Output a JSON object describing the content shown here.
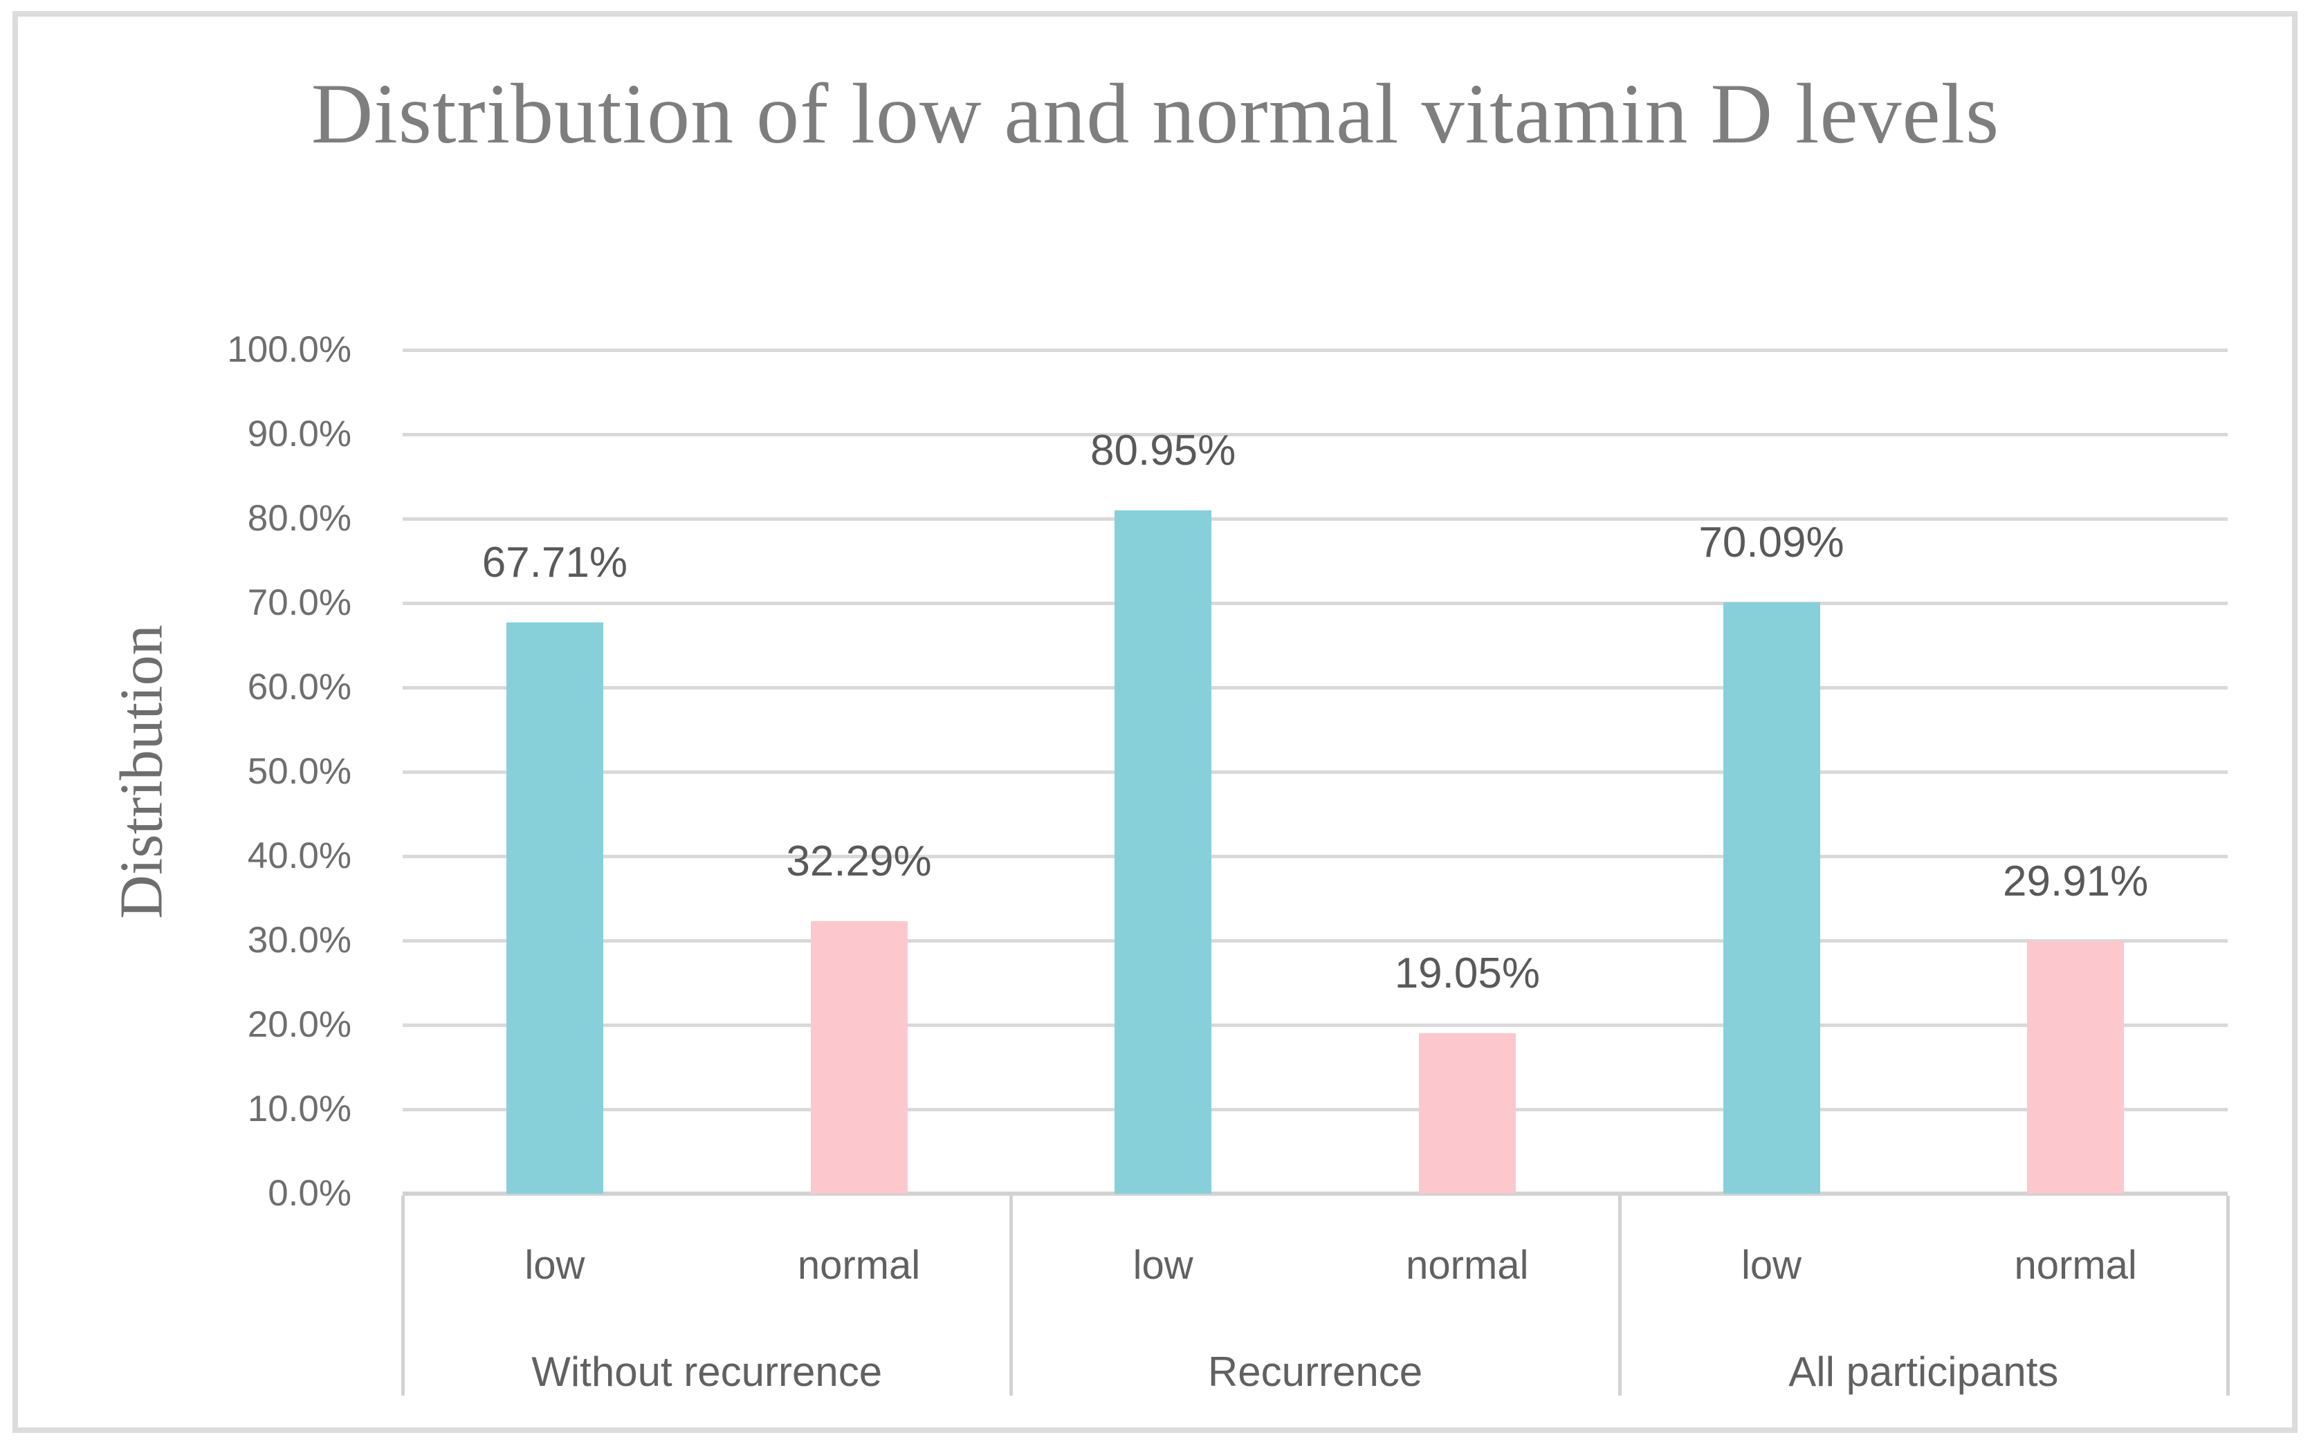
{
  "figure": {
    "background": "#ffffff",
    "border_color": "#dcdcdc"
  },
  "chart_data": {
    "type": "bar",
    "title": "Distribution of low and normal vitamin D levels",
    "xlabel": "",
    "ylabel": "Distribution",
    "ylim": [
      0,
      100
    ],
    "ytick_step": 10,
    "yticks": [
      "100.0%",
      "90.0%",
      "80.0%",
      "70.0%",
      "60.0%",
      "50.0%",
      "40.0%",
      "30.0%",
      "20.0%",
      "10.0%",
      "0.0%"
    ],
    "grid": "horizontal",
    "legend_position": "none",
    "groups": [
      {
        "label": "Without recurrence",
        "bars": [
          {
            "category": "low",
            "value": 67.71,
            "data_label": "67.71%"
          },
          {
            "category": "normal",
            "value": 32.29,
            "data_label": "32.29%"
          }
        ]
      },
      {
        "label": "Recurrence",
        "bars": [
          {
            "category": "low",
            "value": 80.95,
            "data_label": "80.95%"
          },
          {
            "category": "normal",
            "value": 19.05,
            "data_label": "19.05%"
          }
        ]
      },
      {
        "label": "All participants",
        "bars": [
          {
            "category": "low",
            "value": 70.09,
            "data_label": "70.09%"
          },
          {
            "category": "normal",
            "value": 29.91,
            "data_label": "29.91%"
          }
        ]
      }
    ],
    "colors": {
      "low": "#87d0da",
      "normal": "#fcc8ce",
      "gridline": "#d9d9d9",
      "axis_line": "#d2d2d2",
      "title_text": "#7e7e7e",
      "tick_text": "#6e6e6e",
      "label_text": "#595959"
    }
  }
}
